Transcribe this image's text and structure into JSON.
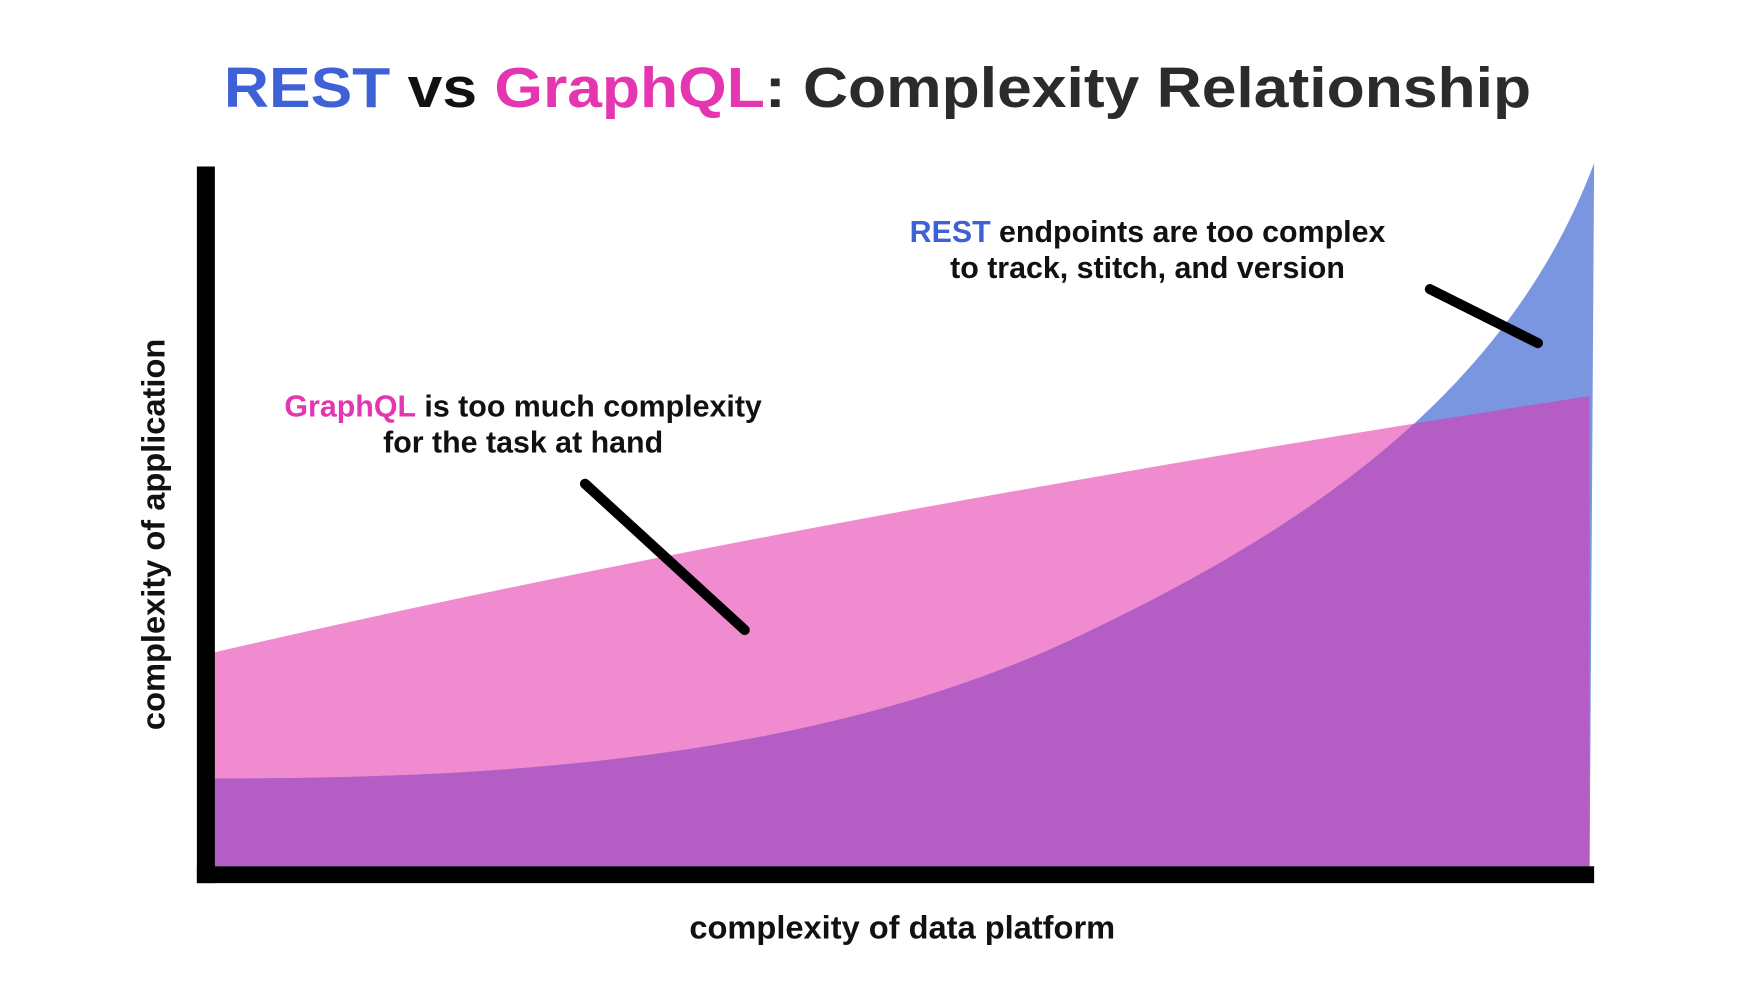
{
  "title": [
    "REST",
    " vs ",
    "GraphQL",
    ": Complexity Relationship"
  ],
  "rest_note": {
    "keyword": "REST",
    "line1": " endpoints are too complex",
    "line2": "to track, stitch, and version"
  },
  "graphql_note": {
    "keyword": "GraphQL",
    "line1": " is too much complexity",
    "line2": "for the task at hand"
  },
  "y_axis_label": "complexity of application",
  "x_axis_label": "complexity of data platform"
}
